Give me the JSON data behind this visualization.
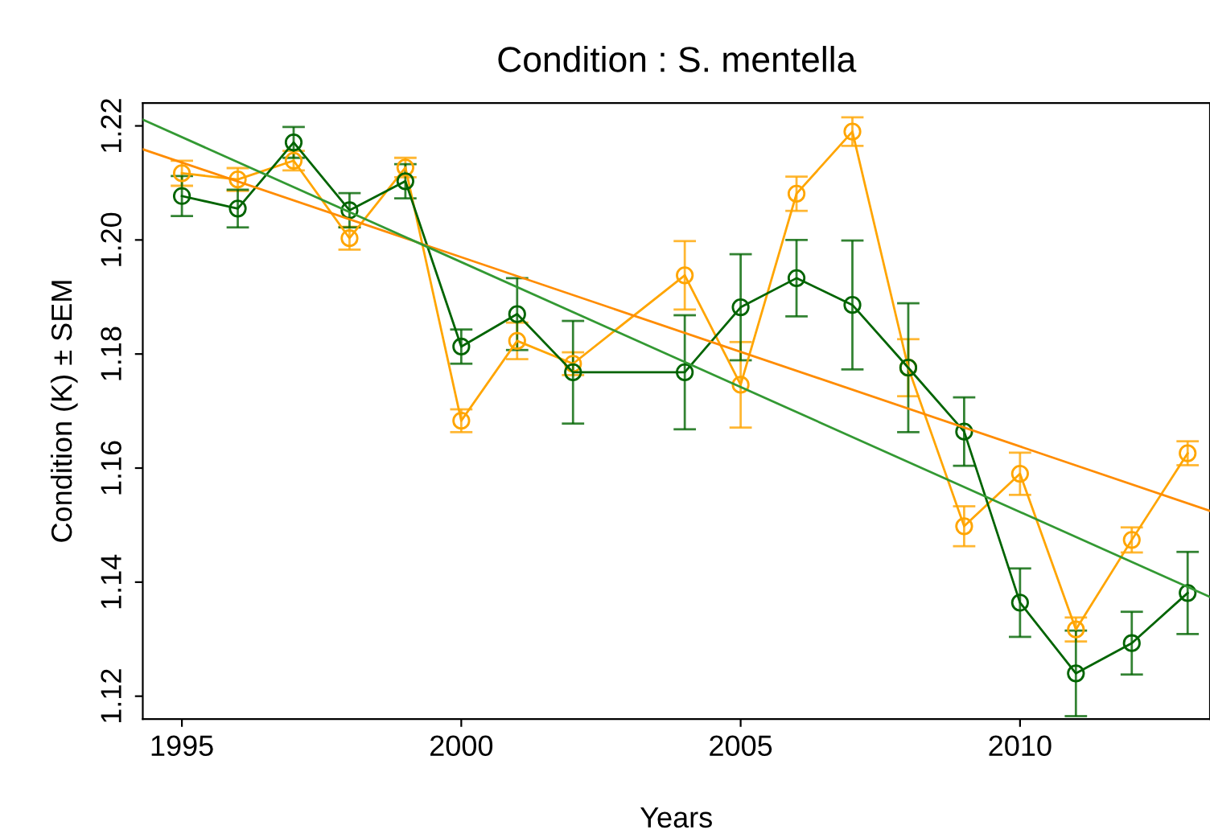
{
  "chart_data": {
    "type": "line",
    "title": "Condition : S. mentella",
    "xlabel": "Years",
    "ylabel": "Condition (K) ± SEM",
    "xlim": [
      1994.3,
      2013.4
    ],
    "ylim": [
      1.116,
      1.224
    ],
    "xticks": [
      1995,
      2000,
      2005,
      2010
    ],
    "yticks": [
      {
        "value": 1.12,
        "label": "1.12"
      },
      {
        "value": 1.14,
        "label": "1.14"
      },
      {
        "value": 1.16,
        "label": "1.16"
      },
      {
        "value": 1.18,
        "label": "1.18"
      },
      {
        "value": 1.2,
        "label": "1.20"
      },
      {
        "value": 1.22,
        "label": "1.22"
      }
    ],
    "grid": false,
    "legend": false,
    "marker": "circle",
    "line_style": "solid",
    "series": [
      {
        "color": "#ffa500",
        "x": [
          1995,
          1996,
          1997,
          1998,
          1999,
          2000,
          2001,
          2002,
          2004,
          2005,
          2006,
          2007,
          2008,
          2009,
          2010,
          2011,
          2012,
          2013
        ],
        "values": [
          1.2117,
          1.2106,
          1.2139,
          1.2003,
          1.2127,
          1.1683,
          1.1823,
          1.1783,
          1.1938,
          1.1746,
          1.2081,
          1.219,
          1.1776,
          1.1498,
          1.159,
          1.1317,
          1.1474,
          1.1626
        ],
        "errors": [
          0.0022,
          0.002,
          0.0017,
          0.002,
          0.0017,
          0.002,
          0.0032,
          0.002,
          0.006,
          0.0075,
          0.003,
          0.0025,
          0.005,
          0.0035,
          0.0037,
          0.0021,
          0.0022,
          0.0021
        ]
      },
      {
        "color": "#006400",
        "x": [
          1995,
          1996,
          1997,
          1998,
          1999,
          2000,
          2001,
          2002,
          2004,
          2005,
          2006,
          2007,
          2008,
          2009,
          2010,
          2011,
          2012,
          2013
        ],
        "values": [
          1.2077,
          1.2055,
          1.2171,
          1.2052,
          1.2103,
          1.1813,
          1.187,
          1.1768,
          1.1768,
          1.1882,
          1.1933,
          1.1886,
          1.1776,
          1.1664,
          1.1364,
          1.124,
          1.1293,
          1.1381
        ],
        "errors": [
          0.0035,
          0.0033,
          0.0027,
          0.003,
          0.003,
          0.003,
          0.0063,
          0.009,
          0.01,
          0.0093,
          0.0067,
          0.0113,
          0.0113,
          0.006,
          0.006,
          0.0075,
          0.0055,
          0.0072
        ]
      },
      {
        "type": "line",
        "color": "#ff8c00",
        "marker": "none",
        "x": [
          1994.3,
          2013.4
        ],
        "values": [
          1.2159,
          1.1525
        ]
      },
      {
        "type": "line",
        "color": "#339933",
        "marker": "none",
        "x": [
          1994.3,
          2013.4
        ],
        "values": [
          1.2211,
          1.1374
        ]
      }
    ]
  }
}
